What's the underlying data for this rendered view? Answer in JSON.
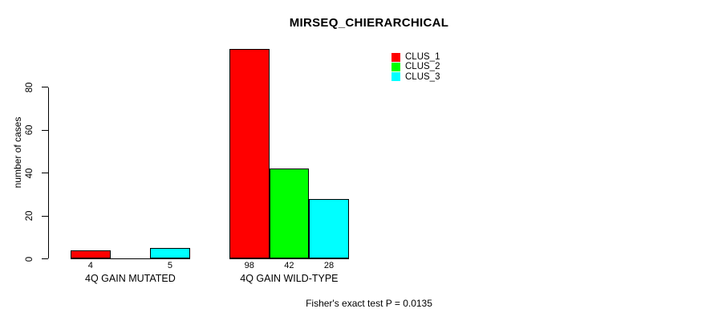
{
  "chart_data": {
    "type": "bar",
    "title": "MIRSEQ_CHIERARCHICAL",
    "xlabel": "",
    "ylabel": "number of cases",
    "ylim": [
      0,
      80
    ],
    "yticks": [
      0,
      20,
      40,
      60,
      80
    ],
    "grid": false,
    "categories": [
      "4Q GAIN MUTATED",
      "4Q GAIN WILD-TYPE"
    ],
    "series": [
      {
        "name": "CLUS_1",
        "color": "#ff0000",
        "values": [
          4,
          98
        ],
        "bar_labels": [
          "4",
          "98"
        ]
      },
      {
        "name": "CLUS_2",
        "color": "#00ff00",
        "values": [
          0,
          42
        ],
        "bar_labels": [
          "",
          "42"
        ]
      },
      {
        "name": "CLUS_3",
        "color": "#00ffff",
        "values": [
          5,
          28
        ],
        "bar_labels": [
          "5",
          "28"
        ]
      }
    ],
    "legend": {
      "position": "top-right",
      "entries": [
        "CLUS_1",
        "CLUS_2",
        "CLUS_3"
      ]
    }
  },
  "annotation": {
    "text": "Fisher's exact test P = 0.0135"
  },
  "colors": {
    "background": "#ffffff",
    "axis": "#000000",
    "text": "#000000"
  }
}
